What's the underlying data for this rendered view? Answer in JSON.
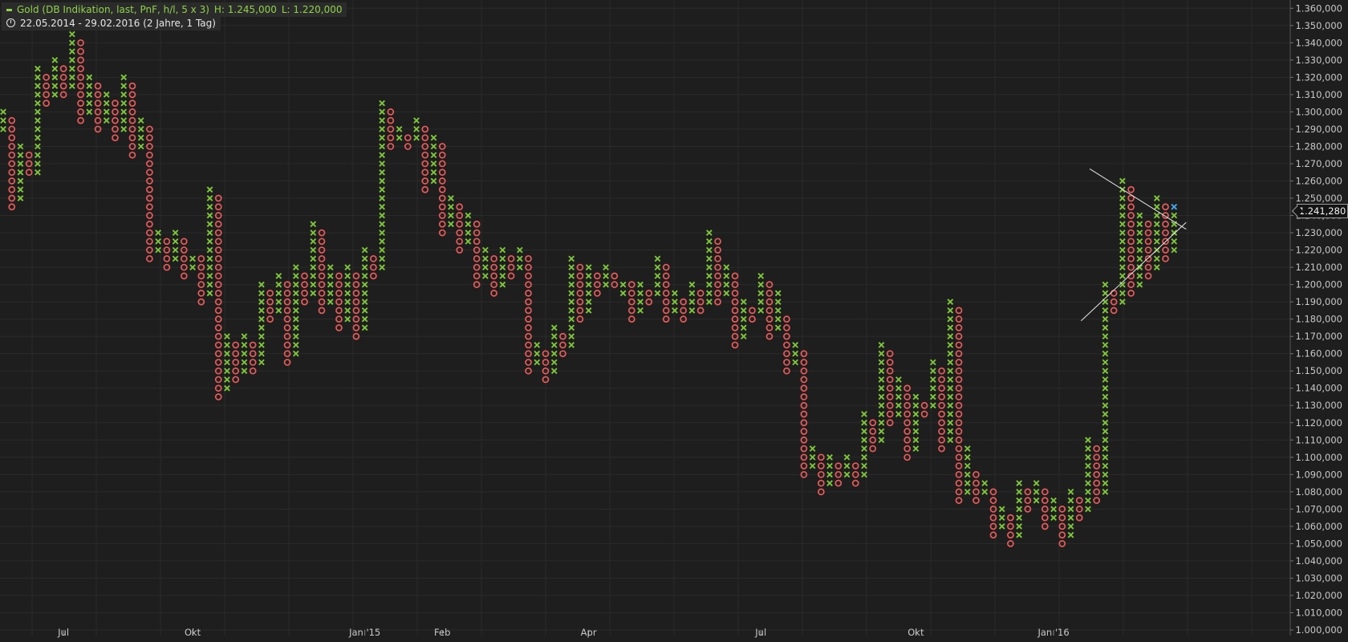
{
  "header": {
    "instrument": "Gold (DB Indikation, last, PnF, h/l, 5 x 3)",
    "high_label": "H: 1.245,000",
    "low_label": "L: 1.220,000",
    "period": "22.05.2014 - 29.02.2016 (2 Jahre, 1 Tag)"
  },
  "last_price_label": "1.241,280",
  "colors": {
    "x_mark": "#7ec63a",
    "o_mark": "#e85b5b",
    "current_mark": "#4aa3e8",
    "background": "#1e1e1e",
    "grid": "#2b2b2b",
    "axis_text": "#c8c8c8"
  },
  "chart_data": {
    "type": "point-and-figure",
    "box_size": 5,
    "reversal": 3,
    "y_unit": "USD",
    "ylim": [
      995,
      1360
    ],
    "y_ticks": [
      "1.000,000",
      "1.010,000",
      "1.020,000",
      "1.030,000",
      "1.040,000",
      "1.050,000",
      "1.060,000",
      "1.070,000",
      "1.080,000",
      "1.090,000",
      "1.100,000",
      "1.110,000",
      "1.120,000",
      "1.130,000",
      "1.140,000",
      "1.150,000",
      "1.160,000",
      "1.170,000",
      "1.180,000",
      "1.190,000",
      "1.200,000",
      "1.210,000",
      "1.220,000",
      "1.230,000",
      "1.240,000",
      "1.250,000",
      "1.260,000",
      "1.270,000",
      "1.280,000",
      "1.290,000",
      "1.300,000",
      "1.310,000",
      "1.320,000",
      "1.330,000",
      "1.340,000",
      "1.350,000",
      "1.360,000"
    ],
    "x_labels": [
      {
        "label": "Jul",
        "column": 7
      },
      {
        "label": "Okt",
        "column": 22
      },
      {
        "label": "Jan '15",
        "column": 42
      },
      {
        "label": "Feb",
        "column": 51
      },
      {
        "label": "Apr",
        "column": 68
      },
      {
        "label": "Jul",
        "column": 88
      },
      {
        "label": "Okt",
        "column": 106
      },
      {
        "label": "Jan '16",
        "column": 122
      }
    ],
    "columns": [
      [
        "X",
        1290,
        1300
      ],
      [
        "O",
        1245,
        1295
      ],
      [
        "X",
        1250,
        1280
      ],
      [
        "O",
        1265,
        1275
      ],
      [
        "X",
        1265,
        1325
      ],
      [
        "O",
        1305,
        1320
      ],
      [
        "X",
        1310,
        1330
      ],
      [
        "O",
        1310,
        1325
      ],
      [
        "X",
        1315,
        1345
      ],
      [
        "O",
        1295,
        1340
      ],
      [
        "X",
        1300,
        1320
      ],
      [
        "O",
        1290,
        1315
      ],
      [
        "X",
        1295,
        1310
      ],
      [
        "O",
        1285,
        1305
      ],
      [
        "X",
        1290,
        1320
      ],
      [
        "O",
        1275,
        1315
      ],
      [
        "X",
        1280,
        1295
      ],
      [
        "O",
        1215,
        1290
      ],
      [
        "X",
        1220,
        1230
      ],
      [
        "O",
        1210,
        1225
      ],
      [
        "X",
        1215,
        1230
      ],
      [
        "O",
        1205,
        1225
      ],
      [
        "X",
        1210,
        1215
      ],
      [
        "O",
        1190,
        1215
      ],
      [
        "X",
        1195,
        1255
      ],
      [
        "O",
        1135,
        1250
      ],
      [
        "X",
        1140,
        1170
      ],
      [
        "O",
        1145,
        1165
      ],
      [
        "X",
        1150,
        1170
      ],
      [
        "O",
        1150,
        1165
      ],
      [
        "X",
        1155,
        1200
      ],
      [
        "O",
        1180,
        1195
      ],
      [
        "X",
        1185,
        1205
      ],
      [
        "O",
        1155,
        1200
      ],
      [
        "X",
        1160,
        1210
      ],
      [
        "O",
        1190,
        1205
      ],
      [
        "X",
        1195,
        1235
      ],
      [
        "O",
        1185,
        1230
      ],
      [
        "X",
        1190,
        1210
      ],
      [
        "O",
        1175,
        1205
      ],
      [
        "X",
        1180,
        1210
      ],
      [
        "O",
        1170,
        1205
      ],
      [
        "X",
        1175,
        1220
      ],
      [
        "O",
        1205,
        1215
      ],
      [
        "X",
        1210,
        1305
      ],
      [
        "O",
        1280,
        1300
      ],
      [
        "X",
        1285,
        1290
      ],
      [
        "O",
        1280,
        1285
      ],
      [
        "X",
        1285,
        1295
      ],
      [
        "O",
        1255,
        1290
      ],
      [
        "X",
        1260,
        1285
      ],
      [
        "O",
        1230,
        1280
      ],
      [
        "X",
        1235,
        1250
      ],
      [
        "O",
        1220,
        1245
      ],
      [
        "X",
        1225,
        1240
      ],
      [
        "O",
        1200,
        1235
      ],
      [
        "X",
        1205,
        1220
      ],
      [
        "O",
        1195,
        1215
      ],
      [
        "X",
        1200,
        1220
      ],
      [
        "O",
        1205,
        1215
      ],
      [
        "X",
        1210,
        1220
      ],
      [
        "O",
        1150,
        1215
      ],
      [
        "X",
        1155,
        1165
      ],
      [
        "O",
        1145,
        1160
      ],
      [
        "X",
        1150,
        1175
      ],
      [
        "O",
        1160,
        1170
      ],
      [
        "X",
        1165,
        1215
      ],
      [
        "O",
        1180,
        1210
      ],
      [
        "X",
        1185,
        1210
      ],
      [
        "O",
        1195,
        1205
      ],
      [
        "X",
        1200,
        1210
      ],
      [
        "O",
        1200,
        1205
      ],
      [
        "X",
        1195,
        1200
      ],
      [
        "O",
        1180,
        1200
      ],
      [
        "X",
        1185,
        1200
      ],
      [
        "O",
        1190,
        1195
      ],
      [
        "X",
        1195,
        1215
      ],
      [
        "O",
        1180,
        1210
      ],
      [
        "X",
        1185,
        1195
      ],
      [
        "O",
        1180,
        1190
      ],
      [
        "X",
        1185,
        1200
      ],
      [
        "O",
        1185,
        1195
      ],
      [
        "X",
        1190,
        1230
      ],
      [
        "O",
        1190,
        1225
      ],
      [
        "X",
        1195,
        1210
      ],
      [
        "O",
        1165,
        1205
      ],
      [
        "X",
        1170,
        1190
      ],
      [
        "O",
        1180,
        1185
      ],
      [
        "X",
        1185,
        1205
      ],
      [
        "O",
        1170,
        1200
      ],
      [
        "X",
        1175,
        1195
      ],
      [
        "O",
        1150,
        1180
      ],
      [
        "X",
        1155,
        1165
      ],
      [
        "O",
        1090,
        1160
      ],
      [
        "X",
        1095,
        1105
      ],
      [
        "O",
        1080,
        1100
      ],
      [
        "X",
        1085,
        1100
      ],
      [
        "O",
        1085,
        1095
      ],
      [
        "X",
        1090,
        1100
      ],
      [
        "O",
        1085,
        1095
      ],
      [
        "X",
        1090,
        1125
      ],
      [
        "O",
        1105,
        1120
      ],
      [
        "X",
        1110,
        1165
      ],
      [
        "O",
        1120,
        1160
      ],
      [
        "X",
        1125,
        1145
      ],
      [
        "O",
        1100,
        1140
      ],
      [
        "X",
        1105,
        1135
      ],
      [
        "O",
        1125,
        1130
      ],
      [
        "X",
        1130,
        1155
      ],
      [
        "O",
        1105,
        1150
      ],
      [
        "X",
        1110,
        1190
      ],
      [
        "O",
        1075,
        1185
      ],
      [
        "X",
        1080,
        1105
      ],
      [
        "O",
        1075,
        1090
      ],
      [
        "X",
        1080,
        1085
      ],
      [
        "O",
        1055,
        1080
      ],
      [
        "X",
        1060,
        1070
      ],
      [
        "O",
        1050,
        1065
      ],
      [
        "X",
        1055,
        1085
      ],
      [
        "O",
        1070,
        1080
      ],
      [
        "X",
        1075,
        1085
      ],
      [
        "O",
        1060,
        1080
      ],
      [
        "X",
        1065,
        1075
      ],
      [
        "O",
        1050,
        1070
      ],
      [
        "X",
        1055,
        1080
      ],
      [
        "O",
        1065,
        1075
      ],
      [
        "X",
        1070,
        1110
      ],
      [
        "O",
        1075,
        1105
      ],
      [
        "X",
        1080,
        1200
      ],
      [
        "O",
        1185,
        1195
      ],
      [
        "X",
        1190,
        1260
      ],
      [
        "O",
        1195,
        1255
      ],
      [
        "X",
        1200,
        1240
      ],
      [
        "O",
        1205,
        1235
      ],
      [
        "X",
        1210,
        1250
      ],
      [
        "O",
        1215,
        1245
      ],
      [
        "X",
        1220,
        1245
      ]
    ],
    "trendlines": [
      {
        "from": {
          "column": 126.2,
          "price": 1267
        },
        "to": {
          "column": 137.4,
          "price": 1232
        }
      },
      {
        "from": {
          "column": 125.2,
          "price": 1179
        },
        "to": {
          "column": 137.4,
          "price": 1236
        }
      }
    ]
  }
}
